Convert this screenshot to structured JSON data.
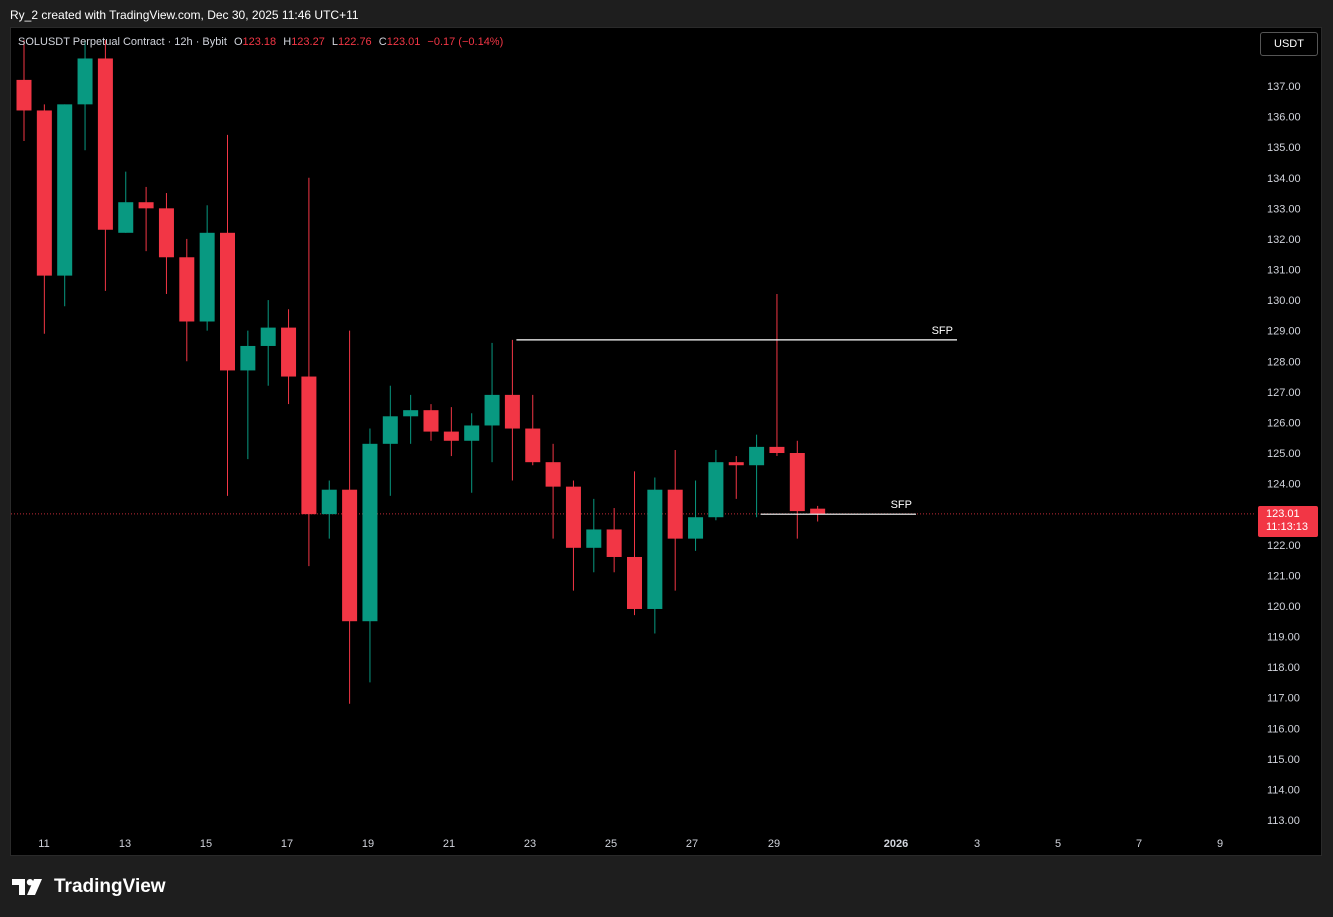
{
  "header": {
    "attribution": "Ry_2 created with TradingView.com, Dec 30, 2025 11:46 UTC+11"
  },
  "legend": {
    "symbol": "SOLUSDT Perpetual Contract · 12h · Bybit",
    "o_label": "O",
    "o_value": "123.18",
    "h_label": "H",
    "h_value": "123.27",
    "l_label": "L",
    "l_value": "122.76",
    "c_label": "C",
    "c_value": "123.01",
    "change": "−0.17 (−0.14%)"
  },
  "currency_button": "USDT",
  "price_tag": {
    "price": "123.01",
    "countdown": "11:13:13"
  },
  "footer": {
    "brand": "TradingView"
  },
  "colors": {
    "up": "#089981",
    "down": "#f23645",
    "background": "#000000",
    "text": "#d1d4dc",
    "level": "#ffffff"
  },
  "chart_data": {
    "type": "candlestick",
    "ylim": [
      112.6,
      138.4
    ],
    "y_ticks": [
      "113.00",
      "114.00",
      "115.00",
      "116.00",
      "117.00",
      "118.00",
      "119.00",
      "120.00",
      "121.00",
      "122.00",
      "123.00",
      "124.00",
      "125.00",
      "126.00",
      "127.00",
      "128.00",
      "129.00",
      "130.00",
      "131.00",
      "132.00",
      "133.00",
      "134.00",
      "135.00",
      "136.00",
      "137.00"
    ],
    "x_ticks": [
      "11",
      "13",
      "15",
      "17",
      "19",
      "21",
      "23",
      "25",
      "27",
      "29",
      "2026",
      "3",
      "5",
      "7",
      "9"
    ],
    "current_price": 123.01,
    "candles": [
      {
        "o": 137.2,
        "h": 138.5,
        "l": 135.2,
        "c": 136.2
      },
      {
        "o": 136.2,
        "h": 136.4,
        "l": 128.9,
        "c": 130.8
      },
      {
        "o": 130.8,
        "h": 136.4,
        "l": 129.8,
        "c": 136.4
      },
      {
        "o": 136.4,
        "h": 138.5,
        "l": 134.9,
        "c": 137.9
      },
      {
        "o": 137.9,
        "h": 138.5,
        "l": 130.3,
        "c": 132.3
      },
      {
        "o": 132.2,
        "h": 134.2,
        "l": 132.2,
        "c": 133.2
      },
      {
        "o": 133.2,
        "h": 133.7,
        "l": 131.6,
        "c": 133.0
      },
      {
        "o": 133.0,
        "h": 133.5,
        "l": 130.2,
        "c": 131.4
      },
      {
        "o": 131.4,
        "h": 132.0,
        "l": 128.0,
        "c": 129.3
      },
      {
        "o": 129.3,
        "h": 133.1,
        "l": 129.0,
        "c": 132.2
      },
      {
        "o": 132.2,
        "h": 135.4,
        "l": 123.6,
        "c": 127.7
      },
      {
        "o": 127.7,
        "h": 129.0,
        "l": 124.8,
        "c": 128.5
      },
      {
        "o": 128.5,
        "h": 130.0,
        "l": 127.2,
        "c": 129.1
      },
      {
        "o": 129.1,
        "h": 129.7,
        "l": 126.6,
        "c": 127.5
      },
      {
        "o": 127.5,
        "h": 134.0,
        "l": 121.3,
        "c": 123.0
      },
      {
        "o": 123.0,
        "h": 124.1,
        "l": 122.2,
        "c": 123.8
      },
      {
        "o": 123.8,
        "h": 129.0,
        "l": 116.8,
        "c": 119.5
      },
      {
        "o": 119.5,
        "h": 125.8,
        "l": 117.5,
        "c": 125.3
      },
      {
        "o": 125.3,
        "h": 127.2,
        "l": 123.6,
        "c": 126.2
      },
      {
        "o": 126.2,
        "h": 126.9,
        "l": 125.3,
        "c": 126.4
      },
      {
        "o": 126.4,
        "h": 126.6,
        "l": 125.4,
        "c": 125.7
      },
      {
        "o": 125.7,
        "h": 126.5,
        "l": 124.9,
        "c": 125.4
      },
      {
        "o": 125.4,
        "h": 126.3,
        "l": 123.7,
        "c": 125.9
      },
      {
        "o": 125.9,
        "h": 128.6,
        "l": 124.7,
        "c": 126.9
      },
      {
        "o": 126.9,
        "h": 128.7,
        "l": 124.1,
        "c": 125.8
      },
      {
        "o": 125.8,
        "h": 126.9,
        "l": 124.6,
        "c": 124.7
      },
      {
        "o": 124.7,
        "h": 125.3,
        "l": 122.2,
        "c": 123.9
      },
      {
        "o": 123.9,
        "h": 124.1,
        "l": 120.5,
        "c": 121.9
      },
      {
        "o": 121.9,
        "h": 123.5,
        "l": 121.1,
        "c": 122.5
      },
      {
        "o": 122.5,
        "h": 123.2,
        "l": 121.1,
        "c": 121.6
      },
      {
        "o": 121.6,
        "h": 124.4,
        "l": 119.7,
        "c": 119.9
      },
      {
        "o": 119.9,
        "h": 124.2,
        "l": 119.1,
        "c": 123.8
      },
      {
        "o": 123.8,
        "h": 125.1,
        "l": 120.5,
        "c": 122.2
      },
      {
        "o": 122.2,
        "h": 124.1,
        "l": 121.8,
        "c": 122.9
      },
      {
        "o": 122.9,
        "h": 125.1,
        "l": 122.8,
        "c": 124.7
      },
      {
        "o": 124.7,
        "h": 124.9,
        "l": 123.5,
        "c": 124.6
      },
      {
        "o": 124.6,
        "h": 125.6,
        "l": 122.9,
        "c": 125.2
      },
      {
        "o": 125.2,
        "h": 130.2,
        "l": 124.9,
        "c": 125.0
      },
      {
        "o": 125.0,
        "h": 125.4,
        "l": 122.2,
        "c": 123.1
      },
      {
        "o": 123.18,
        "h": 123.27,
        "l": 122.76,
        "c": 123.01
      }
    ],
    "levels": [
      {
        "label": "SFP",
        "price": 128.7,
        "from_index": 24,
        "to_date": "2026-01-02"
      },
      {
        "label": "SFP",
        "price": 123.0,
        "from_index": 36,
        "to_date": "2026-01-01"
      }
    ]
  }
}
